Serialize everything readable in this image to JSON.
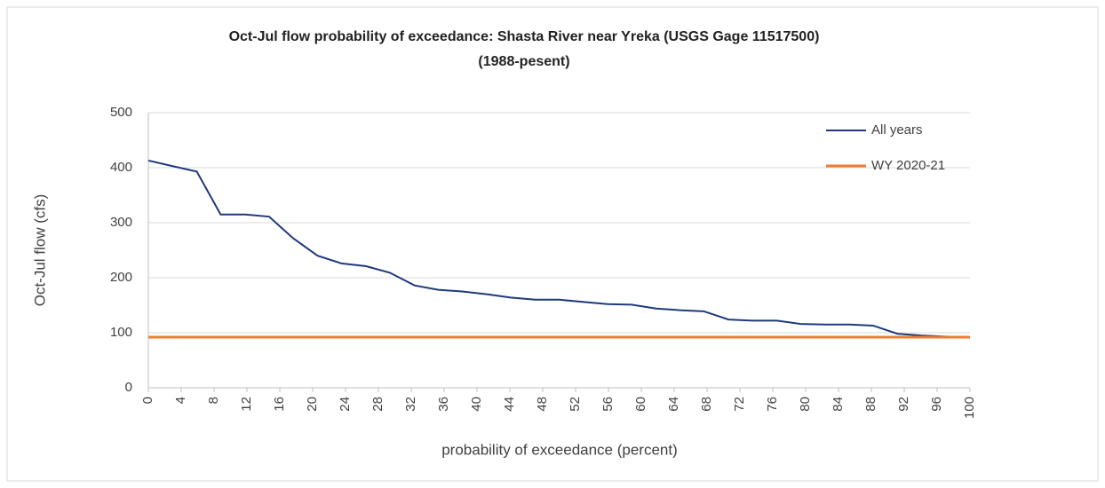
{
  "chart_data": {
    "type": "line",
    "title": "Oct-Jul flow probability of exceedance: Shasta River near Yreka (USGS Gage 11517500)",
    "subtitle": "(1988-pesent)",
    "xlabel": "probability of exceedance (percent)",
    "ylabel": "Oct-Jul flow (cfs)",
    "xlim": [
      0,
      100
    ],
    "xticks": [
      0,
      4,
      8,
      12,
      16,
      20,
      24,
      28,
      32,
      36,
      40,
      44,
      48,
      52,
      56,
      60,
      64,
      68,
      72,
      76,
      80,
      84,
      88,
      92,
      96,
      100
    ],
    "ylim": [
      0,
      500
    ],
    "yticks": [
      0,
      100,
      200,
      300,
      400,
      500
    ],
    "grid": true,
    "legend": "upper right",
    "series": [
      {
        "name": "All years",
        "color": "#1f3a7a",
        "x": [
          0,
          2.9,
          5.9,
          8.8,
          11.8,
          14.7,
          17.6,
          20.6,
          23.5,
          26.5,
          29.4,
          32.4,
          35.3,
          38.2,
          41.2,
          44.1,
          47.1,
          50,
          52.9,
          55.9,
          58.8,
          61.8,
          64.7,
          67.6,
          70.6,
          73.5,
          76.5,
          79.4,
          82.4,
          85.3,
          88.2,
          91.2,
          94.1,
          97.1,
          100
        ],
        "values": [
          413,
          403,
          393,
          315,
          315,
          311,
          272,
          240,
          226,
          221,
          209,
          186,
          178,
          175,
          170,
          164,
          160,
          160,
          156,
          152,
          151,
          144,
          141,
          139,
          124,
          122,
          122,
          116,
          115,
          115,
          113,
          98,
          95,
          93,
          92
        ]
      },
      {
        "name": "WY 2020-21",
        "color": "#ed7d31",
        "x": [
          0,
          100
        ],
        "values": [
          92,
          92
        ]
      }
    ]
  }
}
